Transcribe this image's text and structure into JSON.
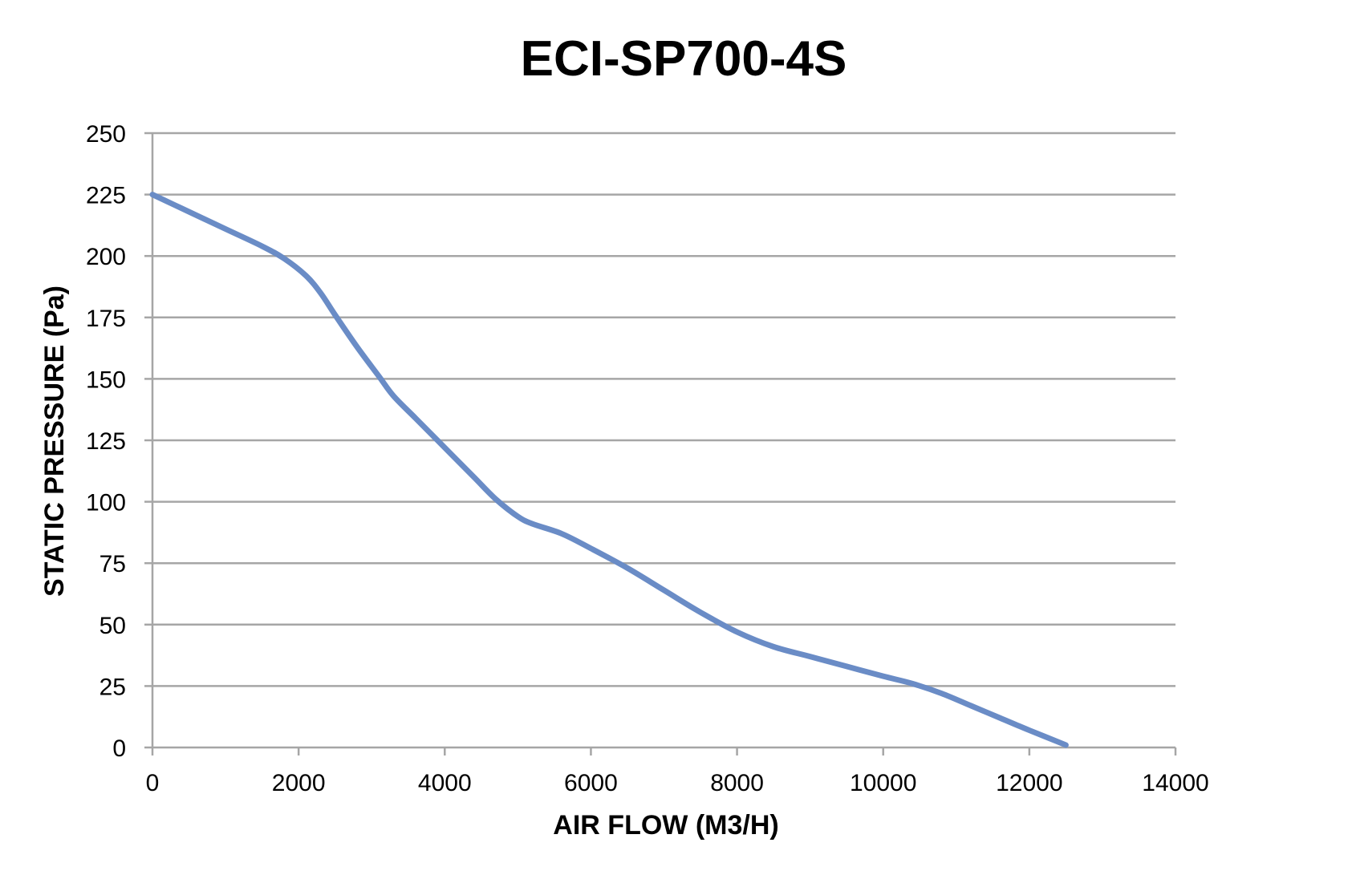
{
  "chart_data": {
    "type": "line",
    "title": "ECI-SP700-4S",
    "xlabel": "AIR FLOW (M3/H)",
    "ylabel": "STATIC PRESSURE (Pa)",
    "xlim": [
      0,
      14000
    ],
    "ylim": [
      0,
      250
    ],
    "xticks": [
      0,
      2000,
      4000,
      6000,
      8000,
      10000,
      12000,
      14000
    ],
    "yticks": [
      0,
      25,
      50,
      75,
      100,
      125,
      150,
      175,
      200,
      225,
      250
    ],
    "grid": true,
    "legend": "none",
    "series": [
      {
        "color": "#6a8cc6",
        "x": [
          0,
          500,
          1000,
          1500,
          1800,
          2100,
          2300,
          2500,
          2800,
          3100,
          3300,
          3600,
          4000,
          4400,
          4700,
          5000,
          5200,
          5600,
          6000,
          6500,
          7000,
          7500,
          8000,
          8500,
          9000,
          9500,
          10000,
          10400,
          10800,
          11200,
          11600,
          12000,
          12500
        ],
        "values": [
          225,
          218,
          211,
          204,
          199,
          192,
          185,
          176,
          163,
          151,
          143,
          134,
          122,
          110,
          101,
          94,
          91,
          87,
          81,
          73,
          64,
          55,
          47,
          41,
          37,
          33,
          29,
          26,
          22,
          17,
          12,
          7,
          1
        ]
      }
    ]
  }
}
